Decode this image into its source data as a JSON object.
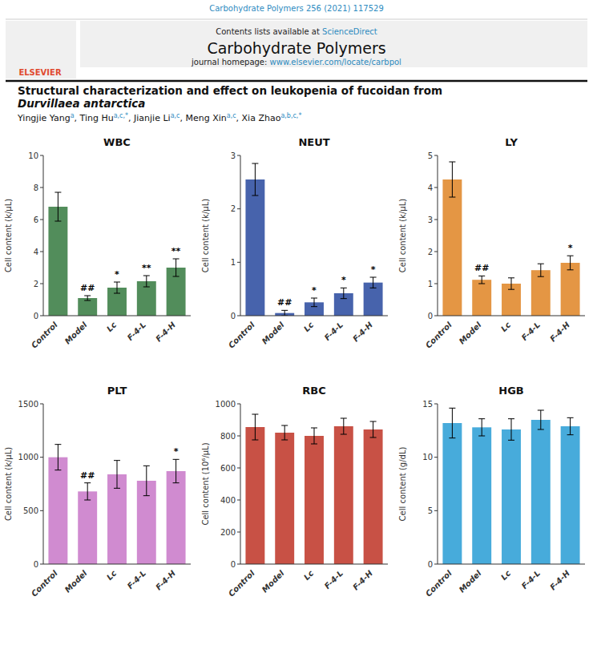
{
  "chart_data": [
    {
      "type": "bar",
      "title": "WBC",
      "ylabel": "Cell content (k/μL)",
      "categories": [
        "Control",
        "Model",
        "Lc",
        "F-4-L",
        "F-4-H"
      ],
      "values": [
        6.8,
        1.1,
        1.75,
        2.15,
        3.0
      ],
      "errors": [
        0.9,
        0.15,
        0.35,
        0.35,
        0.55
      ],
      "color": "#3a7d44",
      "ylim": [
        0,
        10
      ],
      "yticks": [
        0,
        2,
        4,
        6,
        8,
        10
      ],
      "annotations": [
        null,
        "##",
        "*",
        "**",
        "**"
      ]
    },
    {
      "type": "bar",
      "title": "NEUT",
      "ylabel": "Cell content (k/μL)",
      "categories": [
        "Control",
        "Model",
        "Lc",
        "F-4-L",
        "F-4-H"
      ],
      "values": [
        2.55,
        0.05,
        0.25,
        0.42,
        0.62
      ],
      "errors": [
        0.3,
        0.05,
        0.08,
        0.1,
        0.1
      ],
      "color": "#2d4da0",
      "ylim": [
        0,
        3
      ],
      "yticks": [
        0,
        1,
        2,
        3
      ],
      "annotations": [
        null,
        "##",
        "*",
        "*",
        "*"
      ]
    },
    {
      "type": "bar",
      "title": "LY",
      "ylabel": "Cell content (k/μL)",
      "categories": [
        "Control",
        "Model",
        "Lc",
        "F-4-L",
        "F-4-H"
      ],
      "values": [
        4.25,
        1.12,
        1.0,
        1.42,
        1.65
      ],
      "errors": [
        0.55,
        0.12,
        0.18,
        0.2,
        0.22
      ],
      "color": "#e0872a",
      "ylim": [
        0,
        5
      ],
      "yticks": [
        0,
        1,
        2,
        3,
        4,
        5
      ],
      "annotations": [
        null,
        "##",
        null,
        null,
        "*"
      ]
    },
    {
      "type": "bar",
      "title": "PLT",
      "ylabel": "Cell content (k/μL)",
      "categories": [
        "Control",
        "Model",
        "Lc",
        "F-4-L",
        "F-4-H"
      ],
      "values": [
        1000,
        680,
        840,
        780,
        870
      ],
      "errors": [
        120,
        80,
        130,
        140,
        110
      ],
      "color": "#c97bc9",
      "ylim": [
        0,
        1500
      ],
      "yticks": [
        0,
        500,
        1000,
        1500
      ],
      "annotations": [
        null,
        "##",
        null,
        null,
        "*"
      ]
    },
    {
      "type": "bar",
      "title": "RBC",
      "ylabel": "Cell content (10⁶/μL)",
      "categories": [
        "Control",
        "Model",
        "Lc",
        "F-4-L",
        "F-4-H"
      ],
      "values": [
        855,
        820,
        800,
        860,
        840
      ],
      "errors": [
        80,
        45,
        50,
        50,
        50
      ],
      "color": "#c0392b",
      "ylim": [
        0,
        1000
      ],
      "yticks": [
        0,
        200,
        400,
        600,
        800,
        1000
      ]
    },
    {
      "type": "bar",
      "title": "HGB",
      "ylabel": "Cell content (g/dL)",
      "categories": [
        "Control",
        "Model",
        "Lc",
        "F-4-L",
        "F-4-H"
      ],
      "values": [
        13.2,
        12.8,
        12.6,
        13.5,
        12.9
      ],
      "errors": [
        1.4,
        0.8,
        1.0,
        0.9,
        0.8
      ],
      "color": "#2e9fd6",
      "ylim": [
        0,
        15
      ],
      "yticks": [
        0,
        5,
        10,
        15
      ]
    }
  ],
  "header": {
    "citation": "Carbohydrate Polymers 256 (2021) 117529",
    "citation_color": "#2e8bbf",
    "contents_text": "Contents lists available at ",
    "contents_link": "ScienceDirect",
    "link_color": "#2e8bbf",
    "journal_name": "Carbohydrate Polymers",
    "homepage_text": "journal homepage: ",
    "journal_url": "www.elsevier.com/locate/carbpol",
    "url_color": "#2e8bbf",
    "publisher": "ELSEVIER",
    "publisher_color": "#e04a2f",
    "background_color": "#ffffff"
  },
  "article": {
    "title": [
      "Structural characterization and effect on leukopenia of fucoidan from",
      "Durvillaea antarctica"
    ],
    "authors": [
      {
        "name": "Yingjie Yang",
        "marks": "a"
      },
      {
        "name": ", Ting Hu",
        "marks": "a,c,*"
      },
      {
        "name": ", Jianjie Li",
        "marks": "a,c"
      },
      {
        "name": ", Meng Xin",
        "marks": "a,c"
      },
      {
        "name": ", Xia Zhao",
        "marks": "a,b,c,*"
      }
    ],
    "marks_color": "#2e8bbf"
  }
}
